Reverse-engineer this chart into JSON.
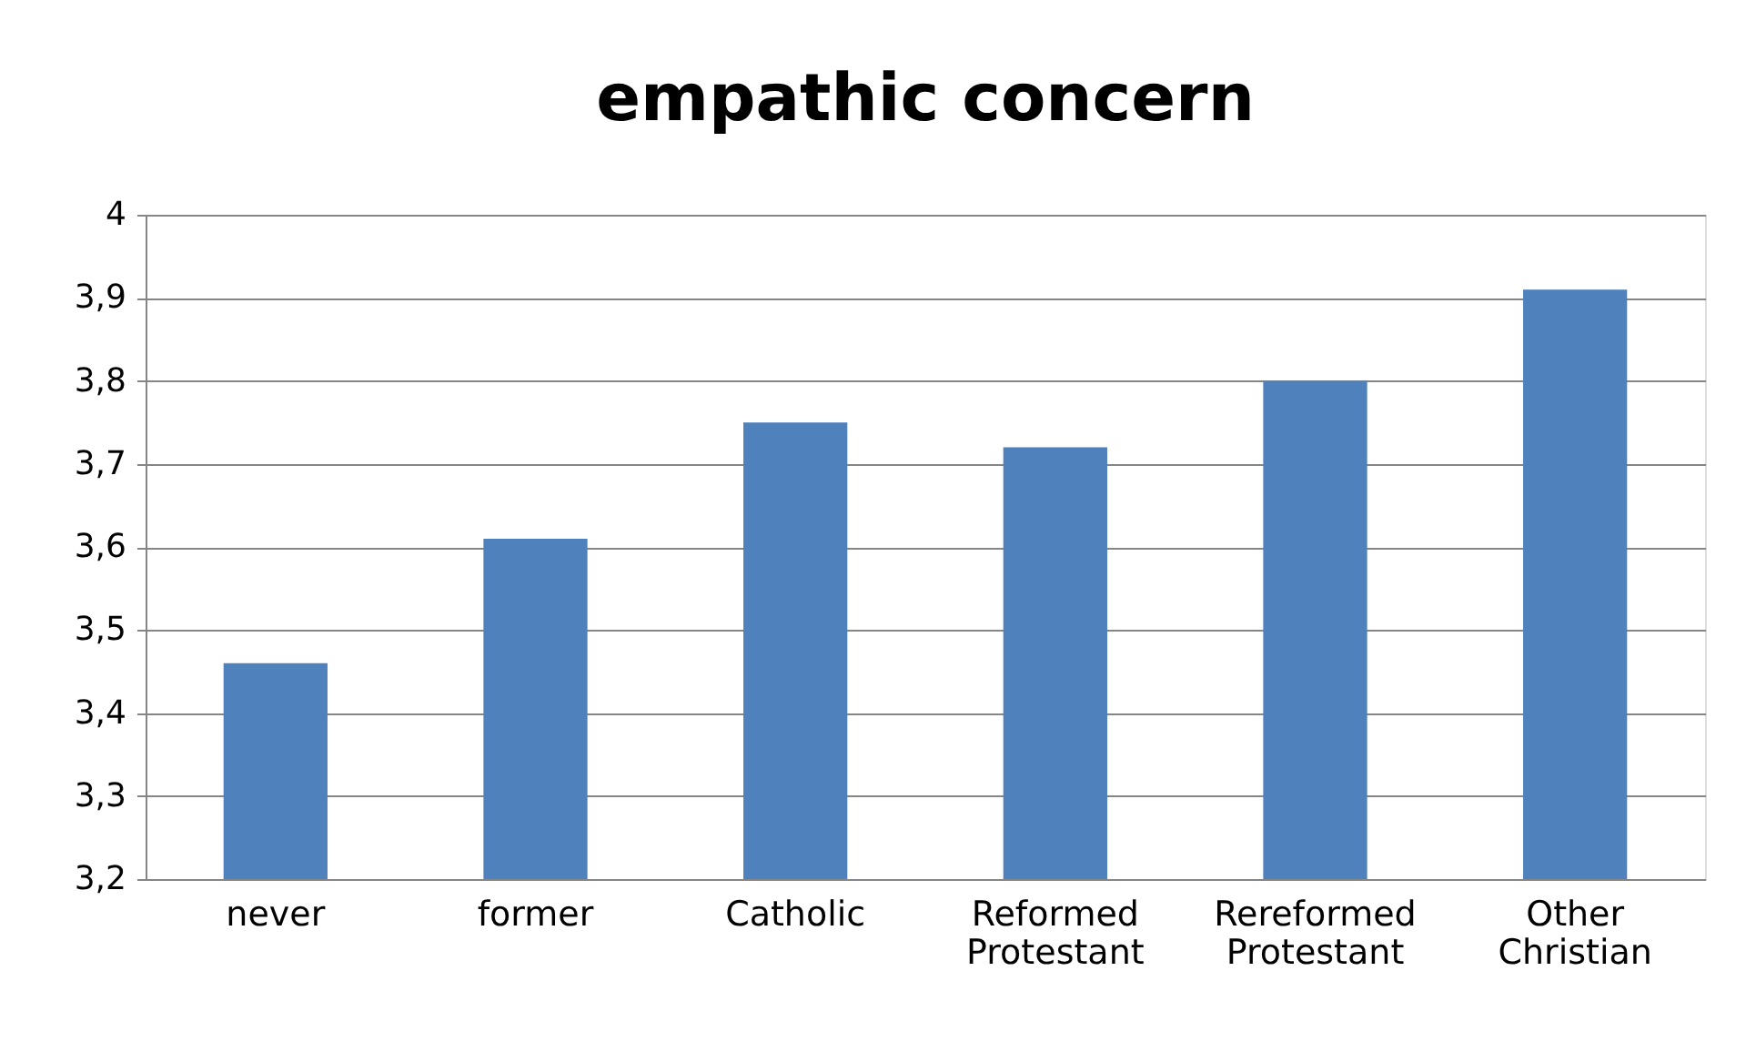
{
  "chart_data": {
    "type": "bar",
    "title": "empathic concern",
    "categories": [
      "never",
      "former",
      "Catholic",
      "Reformed Protestant",
      "Rereformed Protestant",
      "Other Christian"
    ],
    "values": [
      3.46,
      3.61,
      3.75,
      3.72,
      3.8,
      3.91
    ],
    "color": "#4f81bd",
    "ylim": [
      3.2,
      4
    ],
    "yticks": [
      {
        "value": 3.2,
        "label": "3,2"
      },
      {
        "value": 3.3,
        "label": "3,3"
      },
      {
        "value": 3.4,
        "label": "3,4"
      },
      {
        "value": 3.5,
        "label": "3,5"
      },
      {
        "value": 3.6,
        "label": "3,6"
      },
      {
        "value": 3.7,
        "label": "3,7"
      },
      {
        "value": 3.8,
        "label": "3,8"
      },
      {
        "value": 3.9,
        "label": "3,9"
      },
      4
    ],
    "grid": "y"
  }
}
